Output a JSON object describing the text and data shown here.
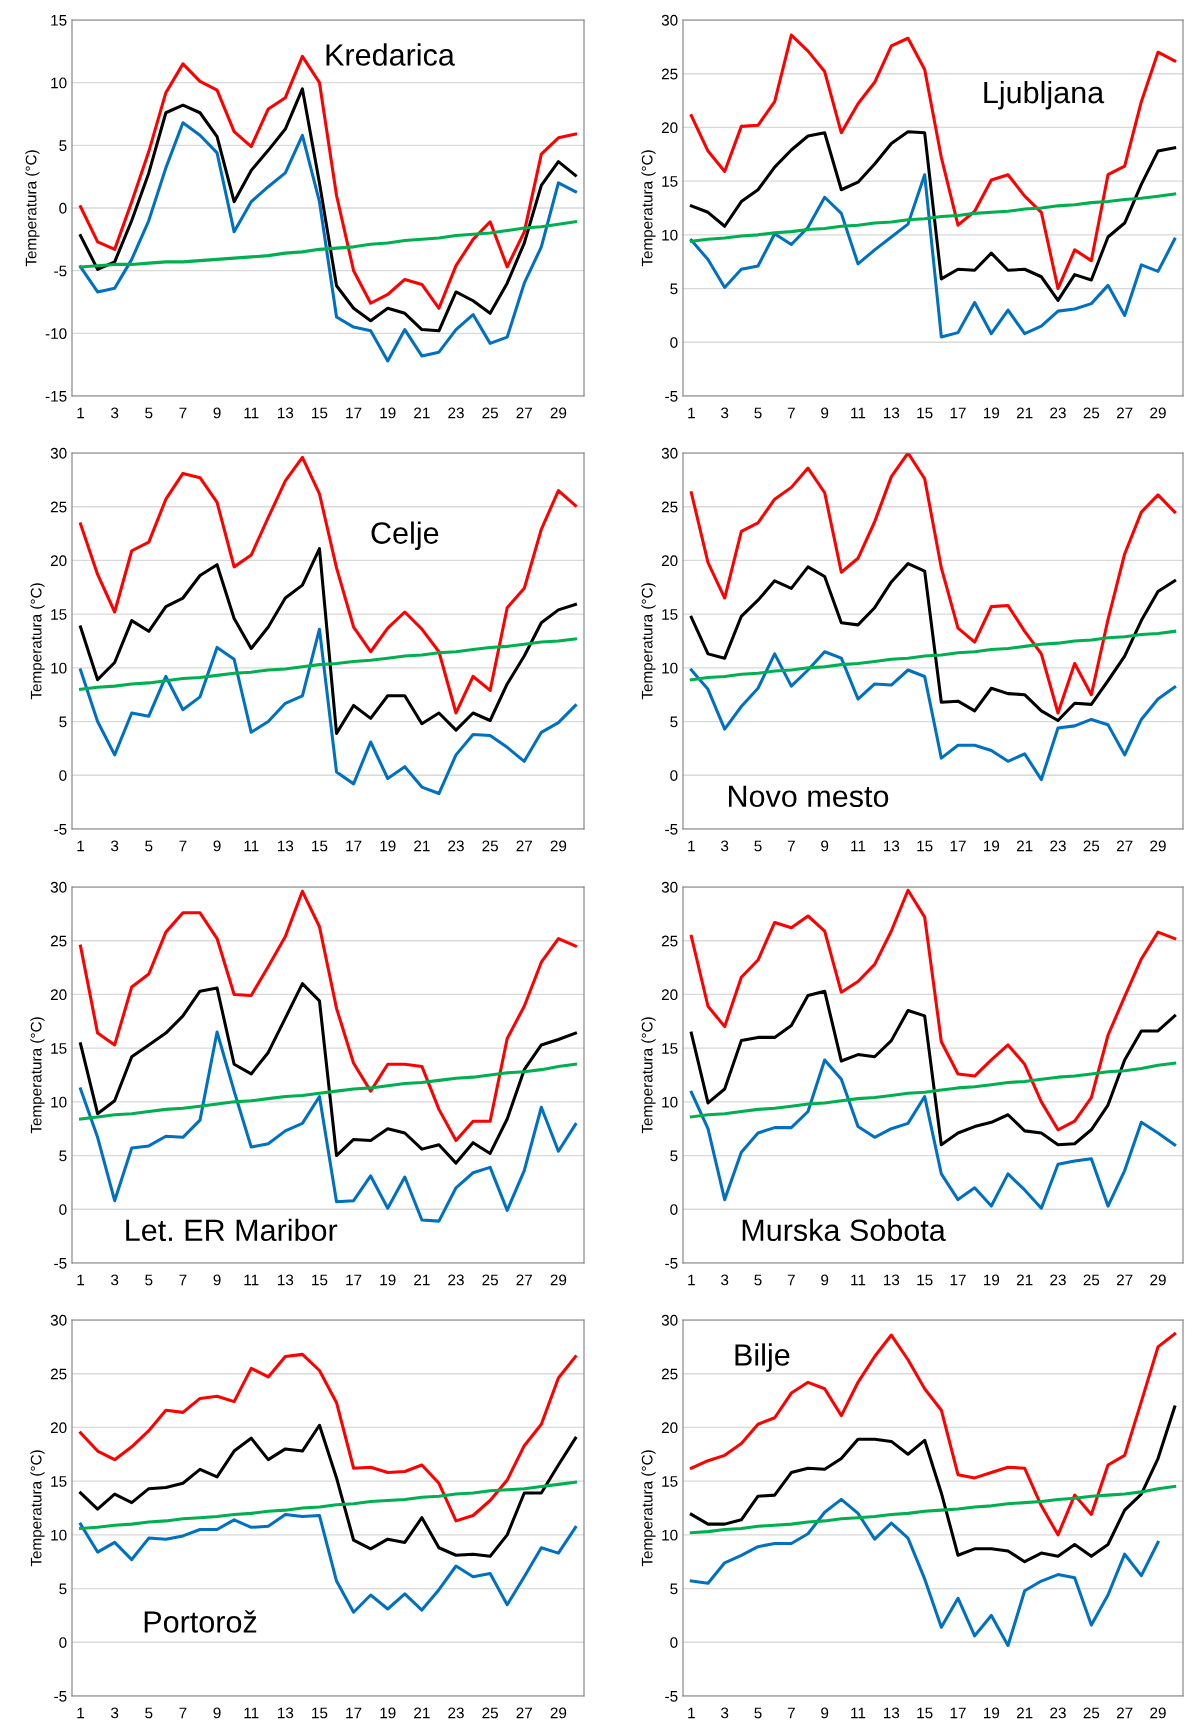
{
  "chart_data": [
    {
      "type": "line",
      "title": "Kredarica",
      "ylabel": "Temperatura (°C)",
      "categories": [
        "1",
        null,
        "3",
        null,
        "5",
        null,
        "7",
        null,
        "9",
        null,
        "11",
        null,
        "13",
        null,
        "15",
        null,
        "17",
        null,
        "19",
        null,
        "21",
        null,
        "23",
        null,
        "25",
        null,
        "27",
        null,
        "29",
        null
      ],
      "ylim": [
        -15,
        15
      ],
      "yticks": [
        -15,
        -10,
        -5,
        0,
        5,
        10,
        15
      ],
      "grid": "y",
      "legend": false,
      "marker": "none",
      "line_style": "solid",
      "series": [
        {
          "color": "#ff0000",
          "values": [
            0.1,
            -2.7,
            -3.3,
            0.5,
            4.5,
            9.2,
            11.5,
            10.1,
            9.4,
            6.1,
            4.9,
            7.9,
            8.8,
            12.1,
            10.0,
            1.0,
            -5.0,
            -7.6,
            -6.9,
            -5.7,
            -6.1,
            -8.0,
            -4.6,
            -2.5,
            -1.1,
            -4.7,
            -1.9,
            4.3,
            5.6,
            5.9
          ]
        },
        {
          "color": "#000000",
          "values": [
            -2.2,
            -4.9,
            -4.3,
            -1.0,
            2.8,
            7.6,
            8.2,
            7.6,
            5.7,
            0.5,
            3.0,
            4.6,
            6.3,
            9.5,
            2.0,
            -6.2,
            -8.0,
            -9.0,
            -8.0,
            -8.4,
            -9.7,
            -9.8,
            -6.7,
            -7.4,
            -8.4,
            -6.0,
            -2.8,
            1.8,
            3.7,
            2.6
          ]
        },
        {
          "color": "#0070c0",
          "values": [
            -4.7,
            -6.7,
            -6.4,
            -4.1,
            -1.0,
            3.2,
            6.8,
            5.8,
            4.4,
            -1.9,
            0.5,
            1.7,
            2.8,
            5.8,
            0.5,
            -8.7,
            -9.5,
            -9.8,
            -12.2,
            -9.7,
            -11.8,
            -11.5,
            -9.7,
            -8.5,
            -10.8,
            -10.3,
            -6.0,
            -3.1,
            2.0,
            1.3
          ]
        },
        {
          "color": "#00b050",
          "values": [
            -4.7,
            -4.6,
            -4.5,
            -4.5,
            -4.4,
            -4.3,
            -4.3,
            -4.2,
            -4.1,
            -4.0,
            -3.9,
            -3.8,
            -3.6,
            -3.5,
            -3.3,
            -3.2,
            -3.1,
            -2.9,
            -2.8,
            -2.6,
            -2.5,
            -2.4,
            -2.2,
            -2.1,
            -2.0,
            -1.8,
            -1.6,
            -1.5,
            -1.3,
            -1.1
          ]
        }
      ]
    },
    {
      "type": "line",
      "title": "Ljubljana",
      "ylabel": "Temperatura (°C)",
      "categories": [
        "1",
        null,
        "3",
        null,
        "5",
        null,
        "7",
        null,
        "9",
        null,
        "11",
        null,
        "13",
        null,
        "15",
        null,
        "17",
        null,
        "19",
        null,
        "21",
        null,
        "23",
        null,
        "25",
        null,
        "27",
        null,
        "29",
        null
      ],
      "ylim": [
        -5,
        30
      ],
      "yticks": [
        -5,
        0,
        5,
        10,
        15,
        20,
        25,
        30
      ],
      "grid": "y",
      "legend": false,
      "marker": "none",
      "line_style": "solid",
      "series": [
        {
          "color": "#ff0000",
          "values": [
            21.1,
            17.8,
            15.9,
            20.1,
            20.2,
            22.4,
            28.6,
            27.1,
            25.2,
            19.5,
            22.2,
            24.2,
            27.6,
            28.3,
            25.4,
            17.2,
            10.9,
            12.2,
            15.1,
            15.6,
            13.6,
            12.1,
            5.0,
            8.6,
            7.6,
            15.6,
            16.4,
            22.4,
            27.0,
            26.2
          ]
        },
        {
          "color": "#000000",
          "values": [
            12.7,
            12.1,
            10.8,
            13.1,
            14.2,
            16.3,
            17.9,
            19.2,
            19.5,
            14.2,
            14.9,
            16.6,
            18.5,
            19.6,
            19.5,
            5.9,
            6.8,
            6.7,
            8.3,
            6.7,
            6.8,
            6.1,
            3.9,
            6.3,
            5.8,
            9.8,
            11.1,
            14.7,
            17.8,
            18.1
          ]
        },
        {
          "color": "#0070c0",
          "values": [
            9.5,
            7.7,
            5.1,
            6.8,
            7.1,
            10.1,
            9.1,
            10.7,
            13.5,
            12.0,
            7.3,
            8.6,
            9.8,
            11.0,
            15.6,
            0.5,
            0.9,
            3.7,
            0.8,
            3.0,
            0.8,
            1.5,
            2.9,
            3.1,
            3.6,
            5.3,
            2.5,
            7.2,
            6.6,
            9.6
          ]
        },
        {
          "color": "#00b050",
          "values": [
            9.4,
            9.6,
            9.7,
            9.9,
            10.0,
            10.2,
            10.3,
            10.5,
            10.6,
            10.8,
            10.9,
            11.1,
            11.2,
            11.4,
            11.5,
            11.7,
            11.8,
            12.0,
            12.1,
            12.2,
            12.4,
            12.5,
            12.7,
            12.8,
            13.0,
            13.1,
            13.3,
            13.4,
            13.6,
            13.8
          ]
        }
      ]
    },
    {
      "type": "line",
      "title": "Celje",
      "ylabel": "Temperatura (°C)",
      "categories": [
        "1",
        null,
        "3",
        null,
        "5",
        null,
        "7",
        null,
        "9",
        null,
        "11",
        null,
        "13",
        null,
        "15",
        null,
        "17",
        null,
        "19",
        null,
        "21",
        null,
        "23",
        null,
        "25",
        null,
        "27",
        null,
        "29",
        null
      ],
      "ylim": [
        -5,
        30
      ],
      "yticks": [
        -5,
        0,
        5,
        10,
        15,
        20,
        25,
        30
      ],
      "grid": "y",
      "legend": false,
      "marker": "none",
      "line_style": "solid",
      "series": [
        {
          "color": "#ff0000",
          "values": [
            23.4,
            18.7,
            15.2,
            20.9,
            21.7,
            25.7,
            28.1,
            27.7,
            25.4,
            19.4,
            20.5,
            24.0,
            27.4,
            29.6,
            26.2,
            19.3,
            13.8,
            11.5,
            13.7,
            15.2,
            13.6,
            11.5,
            5.8,
            9.2,
            7.9,
            15.6,
            17.4,
            22.9,
            26.5,
            25.1
          ]
        },
        {
          "color": "#000000",
          "values": [
            13.8,
            8.9,
            10.5,
            14.4,
            13.4,
            15.7,
            16.5,
            18.6,
            19.6,
            14.6,
            11.8,
            13.8,
            16.5,
            17.7,
            21.1,
            3.9,
            6.5,
            5.3,
            7.4,
            7.4,
            4.8,
            5.8,
            4.2,
            5.8,
            5.1,
            8.5,
            11.1,
            14.2,
            15.4,
            15.9
          ]
        },
        {
          "color": "#0070c0",
          "values": [
            9.8,
            5.0,
            1.9,
            5.8,
            5.5,
            9.2,
            6.1,
            7.3,
            11.9,
            10.8,
            4.0,
            5.0,
            6.7,
            7.4,
            13.6,
            0.3,
            -0.8,
            3.1,
            -0.3,
            0.8,
            -1.1,
            -1.7,
            1.9,
            3.8,
            3.7,
            2.6,
            1.3,
            4.0,
            4.9,
            6.5
          ]
        },
        {
          "color": "#00b050",
          "values": [
            8.0,
            8.2,
            8.3,
            8.5,
            8.6,
            8.8,
            9.0,
            9.1,
            9.3,
            9.5,
            9.6,
            9.8,
            9.9,
            10.1,
            10.3,
            10.4,
            10.6,
            10.7,
            10.9,
            11.1,
            11.2,
            11.4,
            11.5,
            11.7,
            11.9,
            12.0,
            12.2,
            12.4,
            12.5,
            12.7
          ]
        }
      ]
    },
    {
      "type": "line",
      "title": "Novo mesto",
      "ylabel": "Temperatura (°C)",
      "categories": [
        "1",
        null,
        "3",
        null,
        "5",
        null,
        "7",
        null,
        "9",
        null,
        "11",
        null,
        "13",
        null,
        "15",
        null,
        "17",
        null,
        "19",
        null,
        "21",
        null,
        "23",
        null,
        "25",
        null,
        "27",
        null,
        "29",
        null
      ],
      "ylim": [
        -5,
        30
      ],
      "yticks": [
        -5,
        0,
        5,
        10,
        15,
        20,
        25,
        30
      ],
      "grid": "y",
      "legend": false,
      "marker": "none",
      "line_style": "solid",
      "series": [
        {
          "color": "#ff0000",
          "values": [
            26.3,
            19.8,
            16.5,
            22.7,
            23.5,
            25.7,
            26.8,
            28.6,
            26.3,
            18.9,
            20.2,
            23.6,
            27.8,
            30.0,
            27.6,
            19.3,
            13.7,
            12.4,
            15.7,
            15.8,
            13.4,
            11.3,
            5.8,
            10.4,
            7.5,
            14.5,
            20.6,
            24.5,
            26.1,
            24.5
          ]
        },
        {
          "color": "#000000",
          "values": [
            14.7,
            11.3,
            10.9,
            14.8,
            16.3,
            18.1,
            17.4,
            19.4,
            18.5,
            14.2,
            14.0,
            15.6,
            18.0,
            19.7,
            19.0,
            6.8,
            6.9,
            6.0,
            8.1,
            7.6,
            7.5,
            6.0,
            5.1,
            6.7,
            6.6,
            8.8,
            11.1,
            14.4,
            17.1,
            18.1
          ]
        },
        {
          "color": "#0070c0",
          "values": [
            9.8,
            8.0,
            4.3,
            6.4,
            8.1,
            11.3,
            8.3,
            9.8,
            11.5,
            10.9,
            7.1,
            8.5,
            8.4,
            9.8,
            9.2,
            1.6,
            2.8,
            2.8,
            2.3,
            1.3,
            2.0,
            -0.4,
            4.4,
            4.6,
            5.2,
            4.7,
            1.9,
            5.2,
            7.1,
            8.2
          ]
        },
        {
          "color": "#00b050",
          "values": [
            8.9,
            9.1,
            9.2,
            9.4,
            9.5,
            9.7,
            9.8,
            10.0,
            10.1,
            10.3,
            10.4,
            10.6,
            10.8,
            10.9,
            11.1,
            11.2,
            11.4,
            11.5,
            11.7,
            11.8,
            12.0,
            12.2,
            12.3,
            12.5,
            12.6,
            12.8,
            12.9,
            13.1,
            13.2,
            13.4
          ]
        }
      ]
    },
    {
      "type": "line",
      "title": "Let. ER Maribor",
      "ylabel": "Temperatura (°C)",
      "categories": [
        "1",
        null,
        "3",
        null,
        "5",
        null,
        "7",
        null,
        "9",
        null,
        "11",
        null,
        "13",
        null,
        "15",
        null,
        "17",
        null,
        "19",
        null,
        "21",
        null,
        "23",
        null,
        "25",
        null,
        "27",
        null,
        "29",
        null
      ],
      "ylim": [
        -5,
        30
      ],
      "yticks": [
        -5,
        0,
        5,
        10,
        15,
        20,
        25,
        30
      ],
      "grid": "y",
      "legend": false,
      "marker": "none",
      "line_style": "solid",
      "series": [
        {
          "color": "#ff0000",
          "values": [
            24.5,
            16.4,
            15.3,
            20.7,
            21.9,
            25.8,
            27.6,
            27.6,
            25.2,
            20.0,
            19.9,
            22.6,
            25.4,
            29.6,
            26.3,
            18.7,
            13.6,
            11.0,
            13.5,
            13.5,
            13.3,
            9.3,
            6.4,
            8.2,
            8.2,
            15.9,
            18.9,
            23.0,
            25.2,
            24.5
          ]
        },
        {
          "color": "#000000",
          "values": [
            15.4,
            8.9,
            10.1,
            14.2,
            15.3,
            16.4,
            18.0,
            20.3,
            20.6,
            13.5,
            12.6,
            14.6,
            17.8,
            21.0,
            19.4,
            5.0,
            6.5,
            6.4,
            7.5,
            7.1,
            5.6,
            6.0,
            4.3,
            6.2,
            5.2,
            8.4,
            13.0,
            15.3,
            15.8,
            16.4
          ]
        },
        {
          "color": "#0070c0",
          "values": [
            11.2,
            6.7,
            0.8,
            5.7,
            5.9,
            6.8,
            6.7,
            8.3,
            16.5,
            11.0,
            5.8,
            6.1,
            7.3,
            8.0,
            10.5,
            0.7,
            0.8,
            3.1,
            0.1,
            3.0,
            -1.0,
            -1.1,
            2.0,
            3.4,
            3.9,
            -0.1,
            3.6,
            9.5,
            5.4,
            7.9
          ]
        },
        {
          "color": "#00b050",
          "values": [
            8.4,
            8.6,
            8.8,
            8.9,
            9.1,
            9.3,
            9.4,
            9.6,
            9.8,
            10.0,
            10.1,
            10.3,
            10.5,
            10.6,
            10.8,
            11.0,
            11.2,
            11.3,
            11.5,
            11.7,
            11.8,
            12.0,
            12.2,
            12.3,
            12.5,
            12.7,
            12.8,
            13.0,
            13.3,
            13.5
          ]
        }
      ]
    },
    {
      "type": "line",
      "title": "Murska Sobota",
      "ylabel": "Temperatura (°C)",
      "categories": [
        "1",
        null,
        "3",
        null,
        "5",
        null,
        "7",
        null,
        "9",
        null,
        "11",
        null,
        "13",
        null,
        "15",
        null,
        "17",
        null,
        "19",
        null,
        "21",
        null,
        "23",
        null,
        "25",
        null,
        "27",
        null,
        "29",
        null
      ],
      "ylim": [
        -5,
        30
      ],
      "yticks": [
        -5,
        0,
        5,
        10,
        15,
        20,
        25,
        30
      ],
      "grid": "y",
      "legend": false,
      "marker": "none",
      "line_style": "solid",
      "series": [
        {
          "color": "#ff0000",
          "values": [
            25.4,
            18.9,
            17.0,
            21.6,
            23.2,
            26.7,
            26.2,
            27.3,
            25.9,
            20.2,
            21.2,
            22.8,
            25.9,
            29.7,
            27.2,
            15.6,
            12.6,
            12.4,
            13.9,
            15.3,
            13.5,
            10.0,
            7.4,
            8.2,
            10.4,
            16.2,
            19.8,
            23.3,
            25.8,
            25.2
          ]
        },
        {
          "color": "#000000",
          "values": [
            16.4,
            9.9,
            11.2,
            15.7,
            16.0,
            16.0,
            17.1,
            19.9,
            20.3,
            13.8,
            14.4,
            14.2,
            15.7,
            18.5,
            18.0,
            6.0,
            7.1,
            7.7,
            8.1,
            8.8,
            7.3,
            7.1,
            6.0,
            6.1,
            7.4,
            9.7,
            13.9,
            16.6,
            16.6,
            18.0
          ]
        },
        {
          "color": "#0070c0",
          "values": [
            10.9,
            7.5,
            0.9,
            5.3,
            7.1,
            7.6,
            7.6,
            9.1,
            13.9,
            12.1,
            7.7,
            6.7,
            7.5,
            8.0,
            10.5,
            3.3,
            0.9,
            2.0,
            0.3,
            3.3,
            1.8,
            0.1,
            4.2,
            4.5,
            4.7,
            0.3,
            3.6,
            8.1,
            7.1,
            6.0
          ]
        },
        {
          "color": "#00b050",
          "values": [
            8.6,
            8.8,
            8.9,
            9.1,
            9.3,
            9.4,
            9.6,
            9.8,
            9.9,
            10.1,
            10.3,
            10.4,
            10.6,
            10.8,
            10.9,
            11.1,
            11.3,
            11.4,
            11.6,
            11.8,
            11.9,
            12.1,
            12.3,
            12.4,
            12.6,
            12.8,
            12.9,
            13.1,
            13.4,
            13.6
          ]
        }
      ]
    },
    {
      "type": "line",
      "title": "Portorož",
      "ylabel": "Temperatura (°C)",
      "categories": [
        "1",
        null,
        "3",
        null,
        "5",
        null,
        "7",
        null,
        "9",
        null,
        "11",
        null,
        "13",
        null,
        "15",
        null,
        "17",
        null,
        "19",
        null,
        "21",
        null,
        "23",
        null,
        "25",
        null,
        "27",
        null,
        "29",
        null
      ],
      "ylim": [
        -5,
        30
      ],
      "yticks": [
        -5,
        0,
        5,
        10,
        15,
        20,
        25,
        30
      ],
      "grid": "y",
      "legend": false,
      "marker": "none",
      "line_style": "solid",
      "series": [
        {
          "color": "#ff0000",
          "values": [
            19.5,
            17.8,
            17.0,
            18.2,
            19.7,
            21.6,
            21.4,
            22.7,
            22.9,
            22.4,
            25.5,
            24.7,
            26.6,
            26.8,
            25.3,
            22.3,
            16.2,
            16.3,
            15.8,
            15.9,
            16.5,
            14.8,
            11.3,
            11.8,
            13.2,
            15.1,
            18.3,
            20.3,
            24.6,
            26.6
          ]
        },
        {
          "color": "#000000",
          "values": [
            13.9,
            12.4,
            13.8,
            13.0,
            14.3,
            14.4,
            14.8,
            16.1,
            15.4,
            17.8,
            19.0,
            17.0,
            18.0,
            17.8,
            20.2,
            15.3,
            9.5,
            8.7,
            9.6,
            9.3,
            11.6,
            8.8,
            8.1,
            8.2,
            8.0,
            10.0,
            13.9,
            13.9,
            16.5,
            19.0
          ]
        },
        {
          "color": "#0070c0",
          "values": [
            11.0,
            8.4,
            9.3,
            7.7,
            9.7,
            9.6,
            9.9,
            10.5,
            10.5,
            11.4,
            10.7,
            10.8,
            11.9,
            11.7,
            11.8,
            5.7,
            2.8,
            4.4,
            3.1,
            4.5,
            3.0,
            4.9,
            7.1,
            6.1,
            6.4,
            3.5,
            6.1,
            8.8,
            8.3,
            10.7
          ]
        },
        {
          "color": "#00b050",
          "values": [
            10.6,
            10.7,
            10.9,
            11.0,
            11.2,
            11.3,
            11.5,
            11.6,
            11.7,
            11.9,
            12.0,
            12.2,
            12.3,
            12.5,
            12.6,
            12.8,
            12.9,
            13.1,
            13.2,
            13.3,
            13.5,
            13.6,
            13.8,
            13.9,
            14.1,
            14.2,
            14.3,
            14.5,
            14.7,
            14.9
          ]
        }
      ]
    },
    {
      "type": "line",
      "title": "Bilje",
      "ylabel": "Temperatura (°C)",
      "categories": [
        "1",
        null,
        "3",
        null,
        "5",
        null,
        "7",
        null,
        "9",
        null,
        "11",
        null,
        "13",
        null,
        "15",
        null,
        "17",
        null,
        "19",
        null,
        "21",
        null,
        "23",
        null,
        "25",
        null,
        "27",
        null,
        "29",
        null
      ],
      "ylim": [
        -5,
        30
      ],
      "yticks": [
        -5,
        0,
        5,
        10,
        15,
        20,
        25,
        30
      ],
      "grid": "y",
      "legend": false,
      "marker": "none",
      "line_style": "solid",
      "series": [
        {
          "color": "#ff0000",
          "values": [
            16.2,
            16.9,
            17.4,
            18.5,
            20.3,
            20.9,
            23.2,
            24.2,
            23.6,
            21.1,
            24.2,
            26.6,
            28.6,
            26.3,
            23.6,
            21.6,
            15.6,
            15.3,
            15.8,
            16.3,
            16.2,
            12.7,
            10.0,
            13.7,
            11.9,
            16.5,
            17.4,
            22.4,
            27.5,
            28.7
          ]
        },
        {
          "color": "#000000",
          "values": [
            11.9,
            11.0,
            11.0,
            11.4,
            13.6,
            13.7,
            15.8,
            16.2,
            16.1,
            17.1,
            18.9,
            18.9,
            18.7,
            17.5,
            18.8,
            13.9,
            8.1,
            8.7,
            8.7,
            8.5,
            7.5,
            8.3,
            8.0,
            9.1,
            8.0,
            9.1,
            12.3,
            13.8,
            17.1,
            21.9
          ]
        },
        {
          "color": "#0070c0",
          "values": [
            5.7,
            5.5,
            7.4,
            8.1,
            8.9,
            9.2,
            9.2,
            10.1,
            12.1,
            13.3,
            12.0,
            9.6,
            11.1,
            9.7,
            5.9,
            1.4,
            4.1,
            0.6,
            2.5,
            -0.3,
            4.8,
            5.7,
            6.3,
            6.0,
            1.6,
            4.4,
            8.2,
            6.2,
            9.3,
            null
          ]
        },
        {
          "color": "#00b050",
          "values": [
            10.2,
            10.3,
            10.5,
            10.6,
            10.8,
            10.9,
            11.0,
            11.2,
            11.3,
            11.5,
            11.6,
            11.7,
            11.9,
            12.0,
            12.2,
            12.3,
            12.4,
            12.6,
            12.7,
            12.9,
            13.0,
            13.1,
            13.3,
            13.4,
            13.6,
            13.7,
            13.8,
            14.0,
            14.3,
            14.5
          ]
        }
      ]
    }
  ]
}
